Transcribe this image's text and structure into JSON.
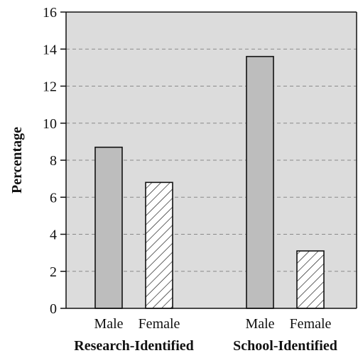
{
  "chart_data": {
    "type": "bar",
    "title": "",
    "xlabel": "",
    "ylabel": "Percentage",
    "ylim": [
      0,
      16
    ],
    "yticks": [
      0,
      2,
      4,
      6,
      8,
      10,
      12,
      14,
      16
    ],
    "grid": "horizontal dashed",
    "groups": [
      {
        "label": "Research-Identified",
        "bars": [
          {
            "category": "Male",
            "value": 8.7,
            "style": "solid"
          },
          {
            "category": "Female",
            "value": 6.8,
            "style": "hatched"
          }
        ]
      },
      {
        "label": "School-Identified",
        "bars": [
          {
            "category": "Male",
            "value": 13.6,
            "style": "solid"
          },
          {
            "category": "Female",
            "value": 3.1,
            "style": "hatched"
          }
        ]
      }
    ],
    "colors": {
      "plot_background": "#dcdcdc",
      "solid_bar": "#bdbdbd",
      "hatched_bar_fill": "#ffffff",
      "bar_stroke": "#111111",
      "grid": "#8a8a8a"
    }
  }
}
